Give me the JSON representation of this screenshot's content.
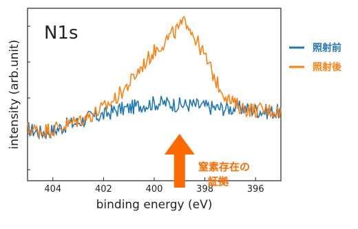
{
  "chart_data": {
    "type": "line",
    "panel_label": "N1s",
    "xlabel": "binding energy (eV)",
    "ylabel": "intensity (arb.unit)",
    "xlim": [
      405,
      395
    ],
    "x_reversed": true,
    "ylim": [
      0,
      1
    ],
    "x_ticks": [
      404,
      402,
      400,
      398,
      396
    ],
    "y_tick_labels_shown": false,
    "grid": false,
    "legend_position": "outside-right",
    "series": [
      {
        "name": "照射前",
        "color": "#1f77b4",
        "points": [
          [
            405.0,
            0.3
          ],
          [
            404.5,
            0.28
          ],
          [
            404.0,
            0.29
          ],
          [
            403.5,
            0.32
          ],
          [
            403.0,
            0.34
          ],
          [
            402.5,
            0.37
          ],
          [
            402.0,
            0.38
          ],
          [
            401.5,
            0.41
          ],
          [
            401.0,
            0.42
          ],
          [
            400.5,
            0.44
          ],
          [
            400.0,
            0.45
          ],
          [
            399.5,
            0.45
          ],
          [
            399.0,
            0.44
          ],
          [
            398.5,
            0.44
          ],
          [
            398.0,
            0.43
          ],
          [
            397.5,
            0.42
          ],
          [
            397.0,
            0.42
          ],
          [
            396.5,
            0.42
          ],
          [
            396.0,
            0.41
          ],
          [
            395.5,
            0.4
          ],
          [
            395.0,
            0.4
          ]
        ]
      },
      {
        "name": "照射後",
        "color": "#ff7f0e",
        "points": [
          [
            405.0,
            0.3
          ],
          [
            404.5,
            0.29
          ],
          [
            404.0,
            0.3
          ],
          [
            403.5,
            0.32
          ],
          [
            403.0,
            0.35
          ],
          [
            402.5,
            0.38
          ],
          [
            402.0,
            0.42
          ],
          [
            401.5,
            0.48
          ],
          [
            401.0,
            0.56
          ],
          [
            400.5,
            0.66
          ],
          [
            400.0,
            0.75
          ],
          [
            399.5,
            0.82
          ],
          [
            399.0,
            0.89
          ],
          [
            398.7,
            0.93
          ],
          [
            398.5,
            0.86
          ],
          [
            398.0,
            0.72
          ],
          [
            397.5,
            0.56
          ],
          [
            397.0,
            0.46
          ],
          [
            396.5,
            0.42
          ],
          [
            396.0,
            0.41
          ],
          [
            395.5,
            0.41
          ],
          [
            395.0,
            0.4
          ]
        ]
      }
    ],
    "annotation": {
      "text_line1": "窒素存在の",
      "text_line2": "証拠",
      "color": "#ff6a00",
      "arrow_x": 399.0
    }
  }
}
